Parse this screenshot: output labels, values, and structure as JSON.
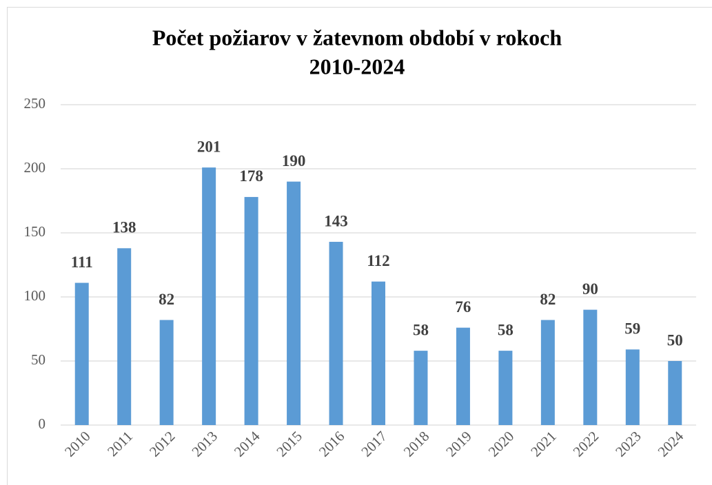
{
  "chart_data": {
    "type": "bar",
    "title": [
      "Počet požiarov  v žatevnom období v rokoch",
      "2010-2024"
    ],
    "categories": [
      "2010",
      "2011",
      "2012",
      "2013",
      "2014",
      "2015",
      "2016",
      "2017",
      "2018",
      "2019",
      "2020",
      "2021",
      "2022",
      "2023",
      "2024"
    ],
    "values": [
      111,
      138,
      82,
      201,
      178,
      190,
      143,
      112,
      58,
      76,
      58,
      82,
      90,
      59,
      50
    ],
    "color": "#5b9bd5",
    "ylim": [
      0,
      250
    ],
    "yticks": [
      0,
      50,
      100,
      150,
      200,
      250
    ],
    "grid": true
  }
}
